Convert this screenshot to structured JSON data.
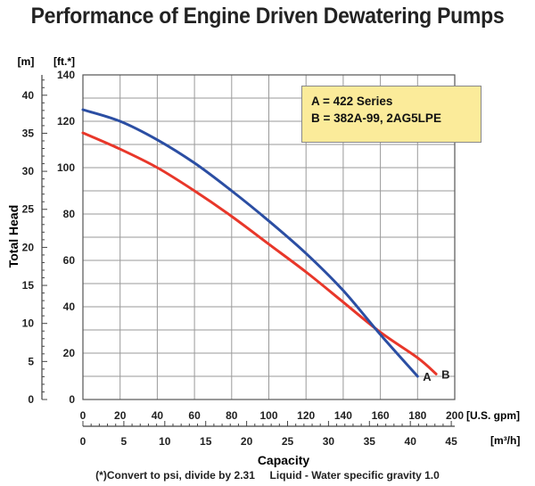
{
  "chart_data": {
    "type": "line",
    "title": "Performance of Engine Driven Dewatering Pumps",
    "xlabel": "Capacity",
    "ylabel": "Total Head",
    "x_unit": "[U.S. gpm]",
    "x2_unit": "[m³/h]",
    "y_unit": "[ft.*]",
    "y2_unit": "[m]",
    "xlim": [
      0,
      200
    ],
    "ylim": [
      0,
      140
    ],
    "x_ticks": [
      0,
      20,
      40,
      60,
      80,
      100,
      120,
      140,
      160,
      180,
      200
    ],
    "y_ticks": [
      0,
      20,
      40,
      60,
      80,
      100,
      120,
      140
    ],
    "x2_ticks": [
      0,
      5,
      10,
      15,
      20,
      25,
      30,
      35,
      40,
      45
    ],
    "y2_ticks": [
      0,
      5,
      10,
      15,
      20,
      25,
      30,
      35,
      40
    ],
    "grid": true,
    "series": [
      {
        "name": "A",
        "color": "#2b4ea3",
        "x": [
          0,
          20,
          40,
          60,
          80,
          100,
          120,
          140,
          160,
          180
        ],
        "y": [
          125,
          120,
          112,
          102,
          90,
          77,
          63,
          47,
          28,
          10
        ]
      },
      {
        "name": "B",
        "color": "#e8372a",
        "x": [
          0,
          20,
          40,
          60,
          80,
          100,
          120,
          140,
          160,
          180,
          190
        ],
        "y": [
          115,
          108,
          100,
          90,
          79,
          67,
          55,
          42,
          29,
          18,
          11
        ]
      }
    ],
    "legend": {
      "placement": "top-right",
      "lines": [
        "A = 422 Series",
        "B = 382A-99, 2AG5LPE"
      ]
    },
    "footnote": "(*)Convert to psi, divide by 2.31     Liquid - Water specific gravity 1.0"
  }
}
